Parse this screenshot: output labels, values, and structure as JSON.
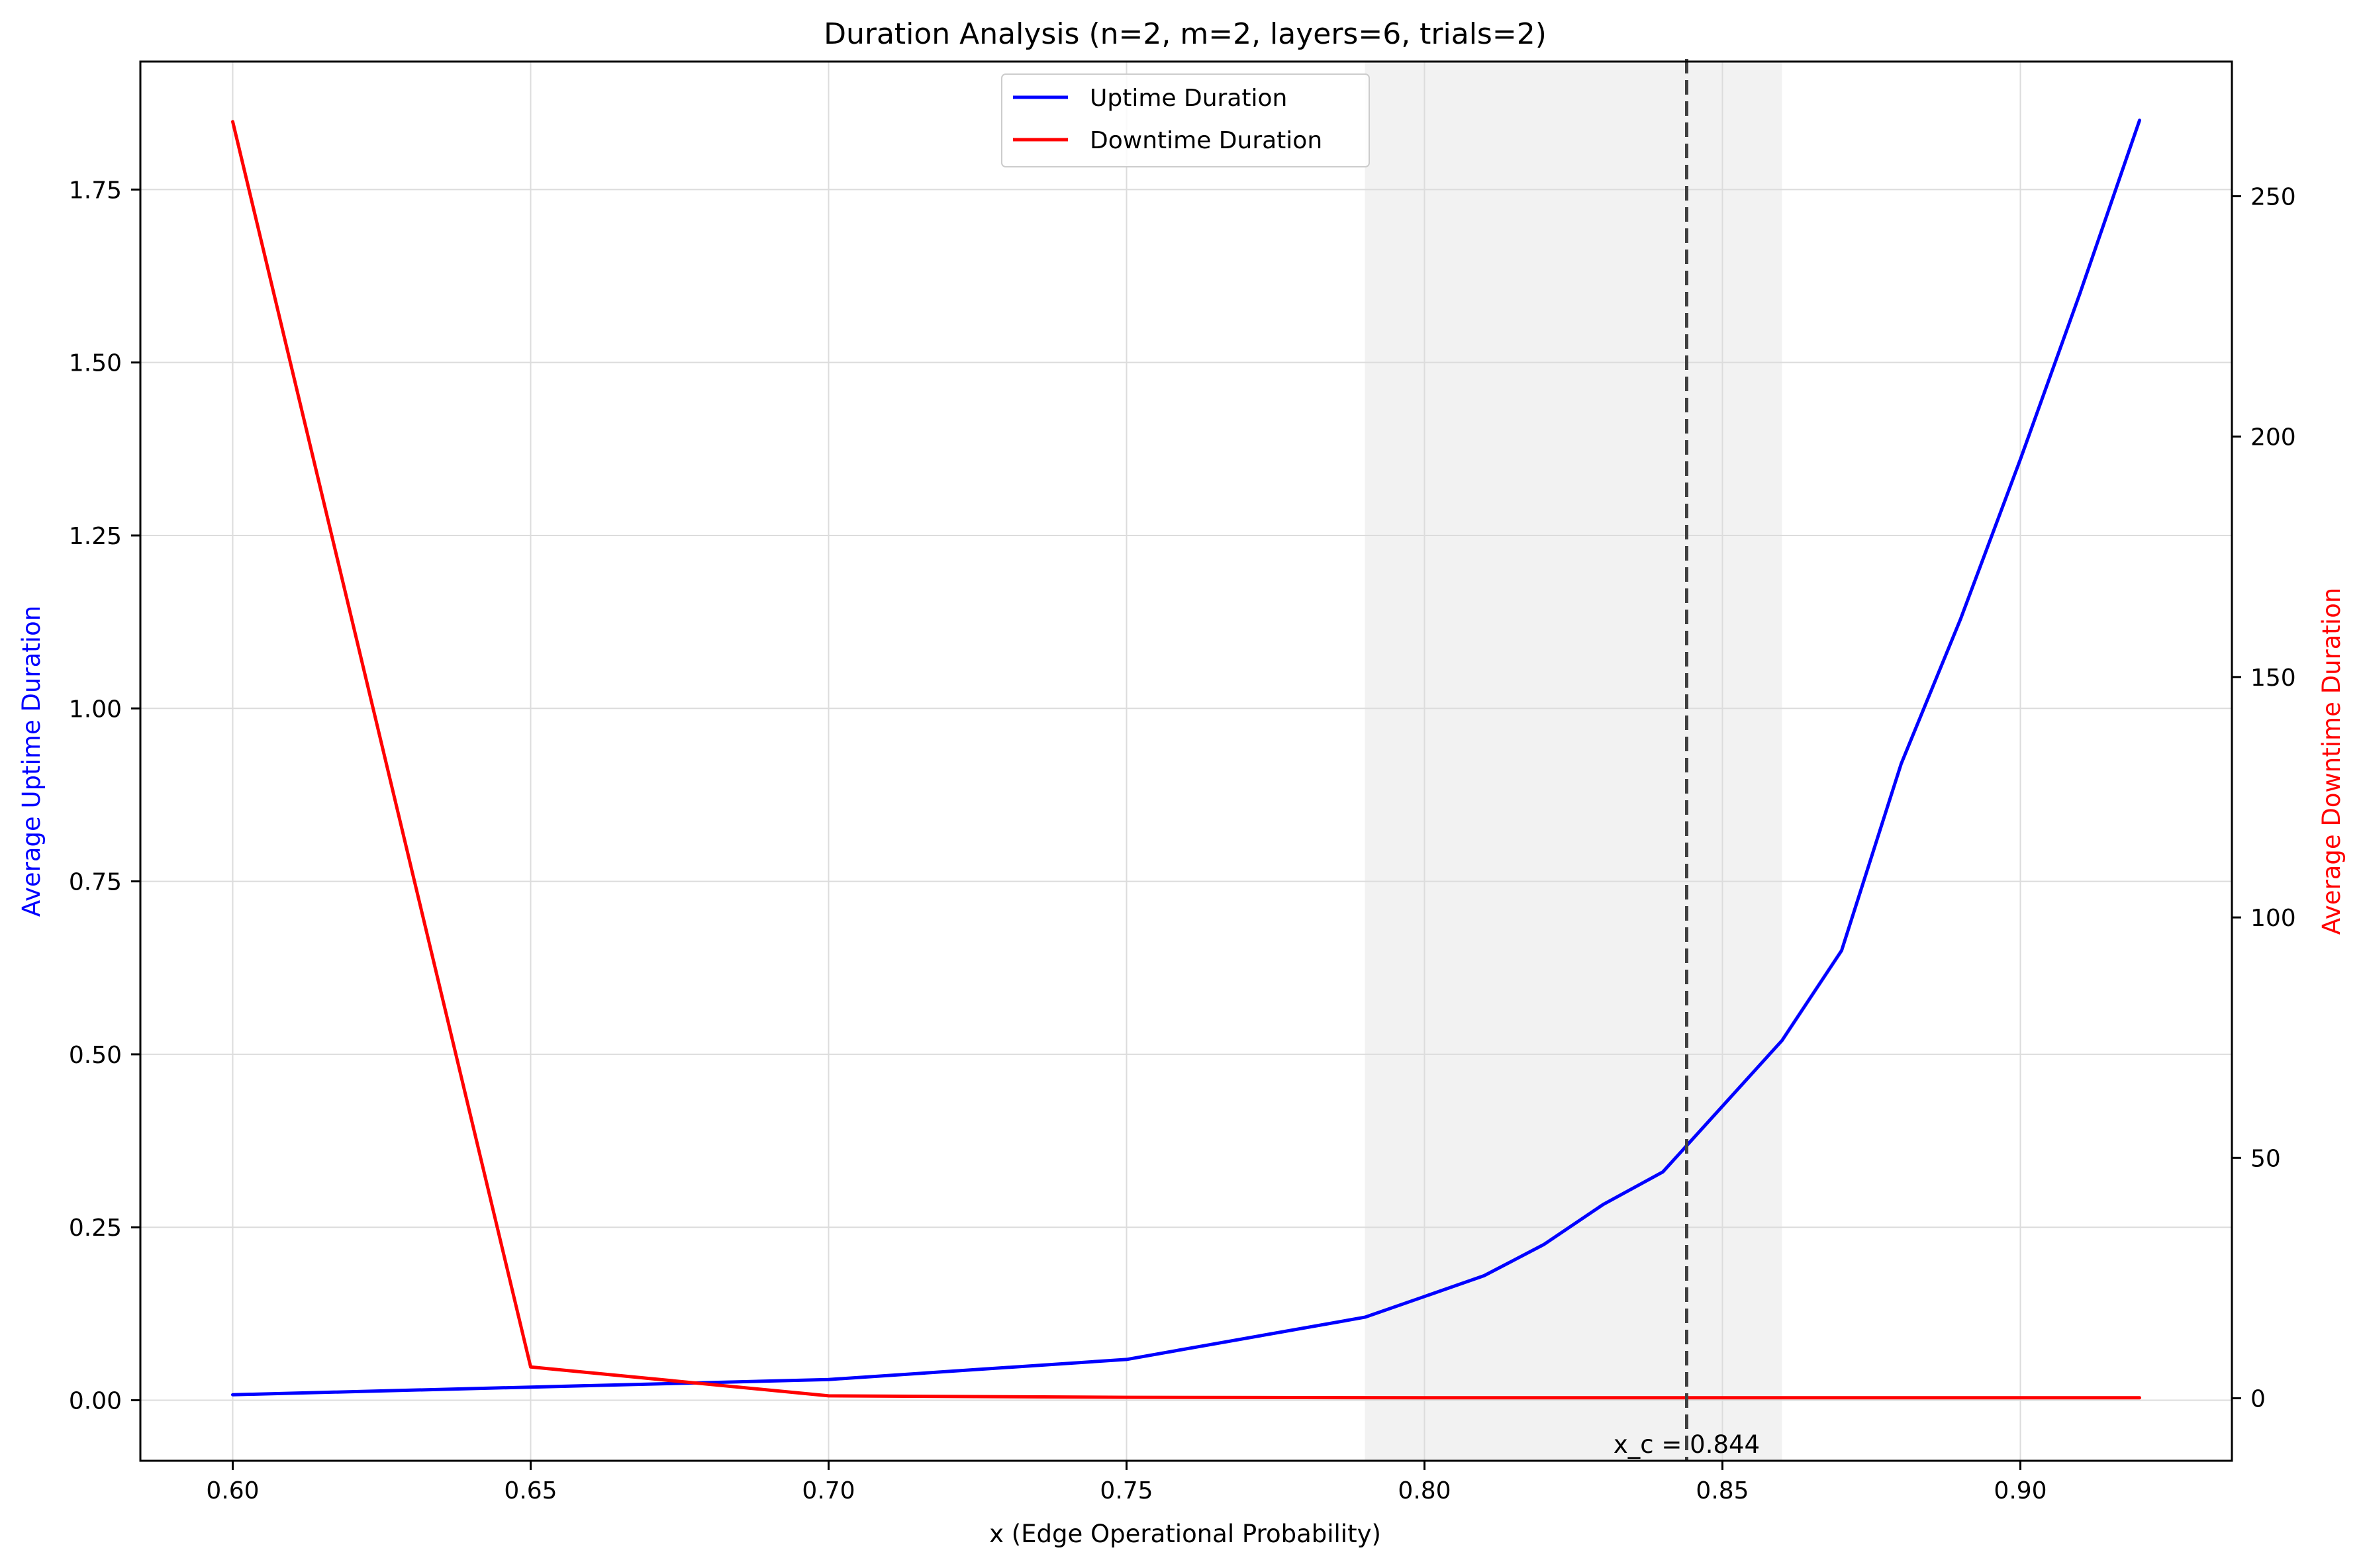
{
  "chart_data": {
    "type": "line",
    "title": "Duration Analysis (n=2, m=2, layers=6, trials=2)",
    "xlabel": "x (Edge Operational Probability)",
    "ylabel_left": "Average Uptime Duration",
    "ylabel_right": "Average Downtime Duration",
    "xlim": [
      0.5845,
      0.9355
    ],
    "ylim_left": [
      -0.0875,
      1.935
    ],
    "ylim_right": [
      -13,
      278
    ],
    "x_ticks": [
      "0.60",
      "0.65",
      "0.70",
      "0.75",
      "0.80",
      "0.85",
      "0.90"
    ],
    "y_left_ticks": [
      "0.00",
      "0.25",
      "0.50",
      "0.75",
      "1.00",
      "1.25",
      "1.50",
      "1.75"
    ],
    "y_right_ticks": [
      "0",
      "50",
      "100",
      "150",
      "200",
      "250"
    ],
    "grid": true,
    "legend_position": "upper center",
    "series": [
      {
        "name": "Uptime Duration",
        "axis": "left",
        "color": "#0000ff",
        "x": [
          0.6,
          0.65,
          0.7,
          0.75,
          0.79,
          0.8,
          0.81,
          0.82,
          0.83,
          0.84,
          0.85,
          0.86,
          0.87,
          0.88,
          0.89,
          0.9,
          0.91,
          0.92
        ],
        "y": [
          0.008,
          0.019,
          0.03,
          0.059,
          0.12,
          0.15,
          0.18,
          0.225,
          0.283,
          0.33,
          0.425,
          0.52,
          0.65,
          0.92,
          1.13,
          1.36,
          1.6,
          1.85
        ]
      },
      {
        "name": "Downtime Duration",
        "axis": "right",
        "color": "#ff0000",
        "x": [
          0.6,
          0.65,
          0.7,
          0.75,
          0.8,
          0.85,
          0.9,
          0.92
        ],
        "y": [
          265.5,
          6.5,
          0.5,
          0.2,
          0.1,
          0.1,
          0.1,
          0.1
        ]
      }
    ],
    "shaded_region": {
      "x_start": 0.79,
      "x_end": 0.86,
      "color": "#f2f2f2"
    },
    "critical_line": {
      "x": 0.844,
      "label": "x_c = 0.844",
      "color": "#404040",
      "style": "dashed"
    }
  }
}
